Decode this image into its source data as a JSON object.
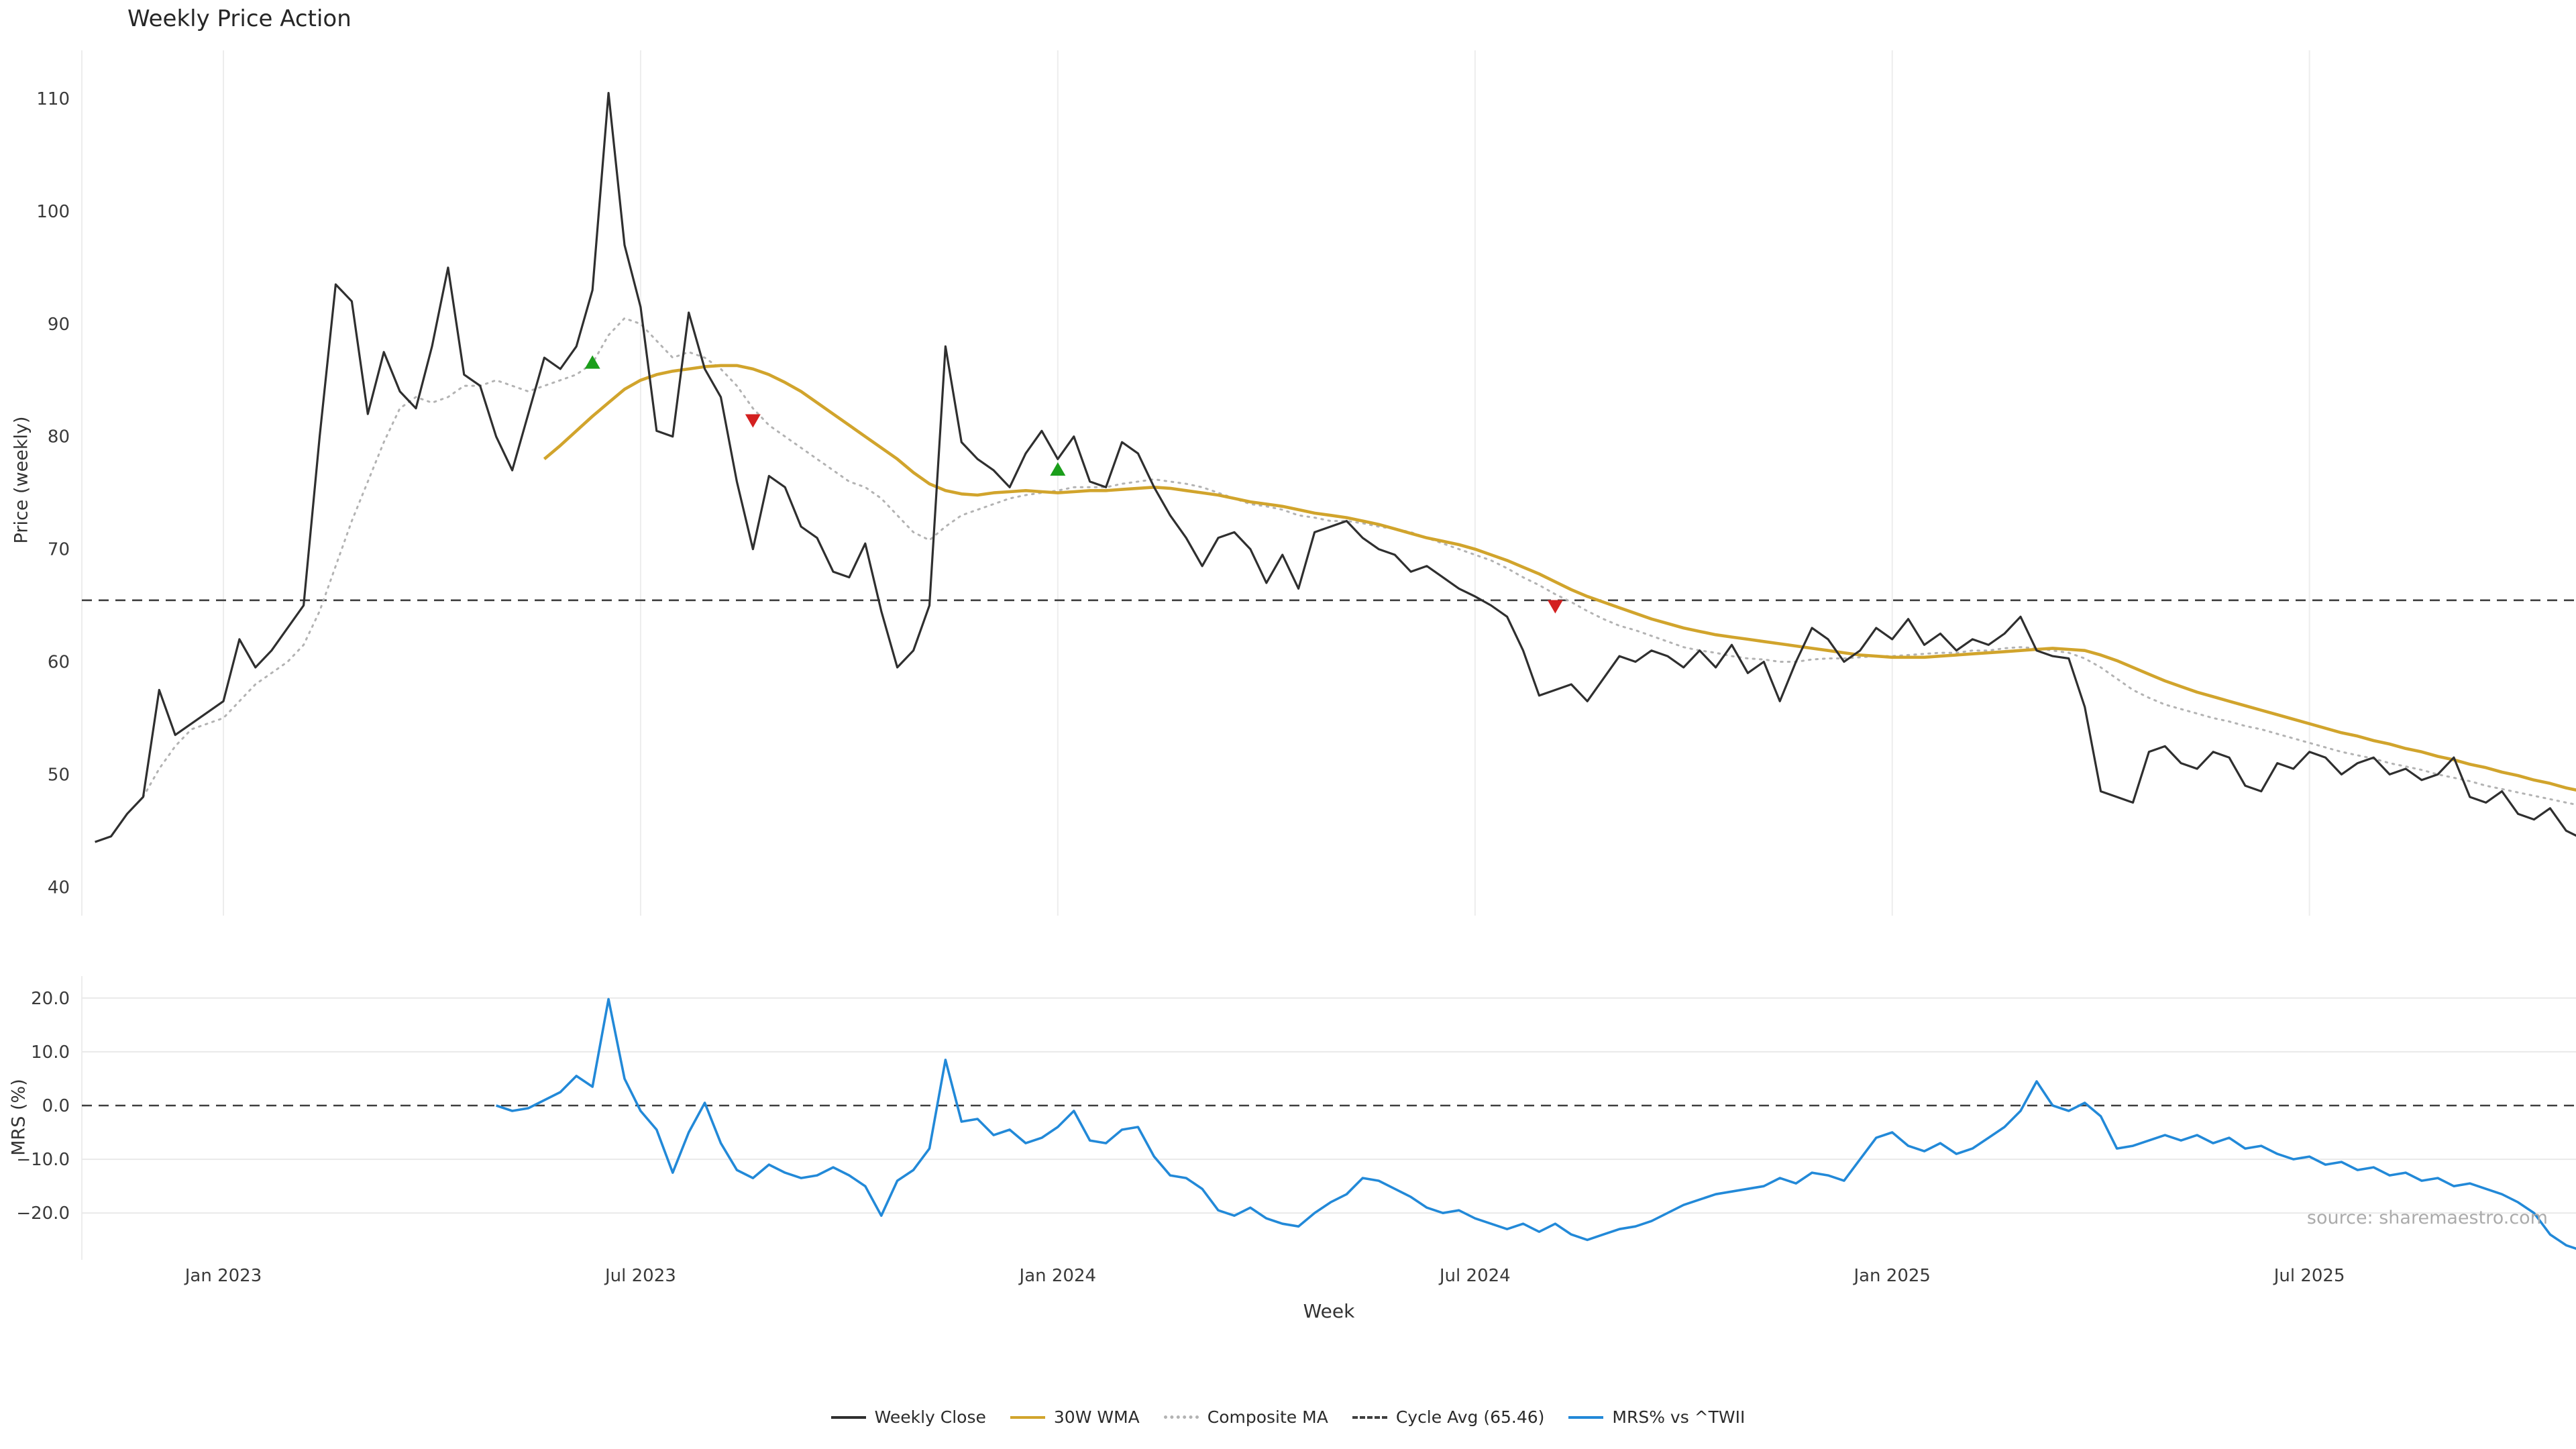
{
  "title": "Weekly Price Action",
  "source_watermark": "source: sharemaestro.com",
  "axes": {
    "xlabel": "Week",
    "price_ylabel": "Price (weekly)",
    "mrs_ylabel": "MRS (%)",
    "price_tick_labels": [
      "40",
      "50",
      "60",
      "70",
      "80",
      "90",
      "100",
      "110"
    ],
    "mrs_tick_labels": [
      "20.0",
      "10.0",
      "0.0",
      "−10.0",
      "−20.0"
    ],
    "x_tick_labels": [
      "Jan 2023",
      "Jul 2023",
      "Jan 2024",
      "Jul 2024",
      "Jan 2025",
      "Jul 2025"
    ]
  },
  "legend": [
    {
      "label": "Weekly Close",
      "color": "#2f2f2f",
      "style": "solid"
    },
    {
      "label": "30W WMA",
      "color": "#d1a42c",
      "style": "solid"
    },
    {
      "label": "Composite MA",
      "color": "#b3b3b3",
      "style": "dotted"
    },
    {
      "label": "Cycle Avg (65.46)",
      "color": "#3f3f3f",
      "style": "dashed"
    },
    {
      "label": "MRS% vs ^TWII",
      "color": "#2289d8",
      "style": "solid"
    }
  ],
  "chart_data": {
    "type": "line",
    "title": "Weekly Price Action",
    "x_axis": {
      "label": "Week",
      "unit": "week_index",
      "total_weeks": 156,
      "tick_weeks": [
        8,
        34,
        60,
        86,
        112,
        138
      ],
      "tick_labels": [
        "Jan 2023",
        "Jul 2023",
        "Jan 2024",
        "Jul 2024",
        "Jan 2025",
        "Jul 2025"
      ]
    },
    "panels": [
      {
        "name": "price",
        "ylabel": "Price (weekly)",
        "ylim": [
          37,
          114
        ],
        "yticks": [
          40,
          50,
          60,
          70,
          80,
          90,
          100,
          110
        ],
        "grid": "vertical-light",
        "reference_lines": [
          {
            "name": "Cycle Avg",
            "value": 65.46,
            "style": "dashed",
            "color": "#3f3f3f"
          }
        ],
        "series": [
          {
            "name": "Weekly Close",
            "color": "#2f2f2f",
            "style": "solid",
            "start_week": 0,
            "values": [
              44.0,
              44.5,
              46.5,
              48.0,
              57.5,
              53.5,
              54.5,
              55.5,
              56.5,
              62.0,
              59.5,
              61.0,
              63.0,
              65.0,
              80.0,
              93.5,
              92.0,
              82.0,
              87.5,
              84.0,
              82.5,
              88.0,
              95.0,
              85.5,
              84.5,
              80.0,
              77.0,
              82.0,
              87.0,
              86.0,
              88.0,
              93.0,
              110.5,
              97.0,
              91.5,
              80.5,
              80.0,
              91.0,
              86.0,
              83.5,
              76.0,
              70.0,
              76.5,
              75.5,
              72.0,
              71.0,
              68.0,
              67.5,
              70.5,
              64.5,
              59.5,
              61.0,
              65.0,
              88.0,
              79.5,
              78.0,
              77.0,
              75.5,
              78.5,
              80.5,
              78.0,
              80.0,
              76.0,
              75.5,
              79.5,
              78.5,
              75.5,
              73.0,
              71.0,
              68.5,
              71.0,
              71.5,
              70.0,
              67.0,
              69.5,
              66.5,
              71.5,
              72.0,
              72.5,
              71.0,
              70.0,
              69.5,
              68.0,
              68.5,
              67.5,
              66.5,
              65.8,
              65.0,
              64.0,
              61.0,
              57.0,
              57.5,
              58.0,
              56.5,
              58.5,
              60.5,
              60.0,
              61.0,
              60.5,
              59.5,
              61.0,
              59.5,
              61.5,
              59.0,
              60.0,
              56.5,
              60.0,
              63.0,
              62.0,
              60.0,
              61.0,
              63.0,
              62.0,
              63.8,
              61.5,
              62.5,
              61.0,
              62.0,
              61.5,
              62.5,
              64.0,
              61.0,
              60.5,
              60.3,
              56.0,
              48.5,
              48.0,
              47.5,
              52.0,
              52.5,
              51.0,
              50.5,
              52.0,
              51.5,
              49.0,
              48.5,
              51.0,
              50.5,
              52.0,
              51.5,
              50.0,
              51.0,
              51.5,
              50.0,
              50.5,
              49.5,
              50.0,
              51.5,
              48.0,
              47.5,
              48.5,
              46.5,
              46.0,
              47.0,
              45.0,
              44.3
            ]
          },
          {
            "name": "30W WMA",
            "color": "#d1a42c",
            "style": "solid",
            "start_week": 28,
            "values": [
              78.0,
              79.2,
              80.5,
              81.8,
              83.0,
              84.2,
              85.0,
              85.5,
              85.8,
              86.0,
              86.2,
              86.3,
              86.3,
              86.0,
              85.5,
              84.8,
              84.0,
              83.0,
              82.0,
              81.0,
              80.0,
              79.0,
              78.0,
              76.8,
              75.8,
              75.2,
              74.9,
              74.8,
              75.0,
              75.1,
              75.2,
              75.1,
              75.0,
              75.1,
              75.2,
              75.2,
              75.3,
              75.4,
              75.5,
              75.4,
              75.2,
              75.0,
              74.8,
              74.5,
              74.2,
              74.0,
              73.8,
              73.5,
              73.2,
              73.0,
              72.8,
              72.5,
              72.2,
              71.8,
              71.4,
              71.0,
              70.7,
              70.4,
              70.0,
              69.5,
              69.0,
              68.4,
              67.8,
              67.1,
              66.4,
              65.8,
              65.3,
              64.8,
              64.3,
              63.8,
              63.4,
              63.0,
              62.7,
              62.4,
              62.2,
              62.0,
              61.8,
              61.6,
              61.4,
              61.2,
              61.0,
              60.8,
              60.6,
              60.5,
              60.4,
              60.4,
              60.4,
              60.5,
              60.6,
              60.7,
              60.8,
              60.9,
              61.0,
              61.1,
              61.2,
              61.1,
              61.0,
              60.6,
              60.1,
              59.5,
              58.9,
              58.3,
              57.8,
              57.3,
              56.9,
              56.5,
              56.1,
              55.7,
              55.3,
              54.9,
              54.5,
              54.1,
              53.7,
              53.4,
              53.0,
              52.7,
              52.3,
              52.0,
              51.6,
              51.3,
              50.9,
              50.6,
              50.2,
              49.9,
              49.5,
              49.2,
              48.8,
              48.5
            ]
          },
          {
            "name": "Composite MA",
            "color": "#b3b3b3",
            "style": "dotted",
            "start_week": 3,
            "values": [
              48.0,
              50.5,
              52.5,
              54.0,
              54.5,
              55.0,
              56.5,
              58.0,
              59.0,
              60.0,
              61.5,
              64.5,
              68.5,
              72.5,
              76.0,
              79.5,
              82.5,
              83.5,
              83.0,
              83.5,
              84.5,
              84.5,
              85.0,
              84.5,
              84.0,
              84.5,
              85.0,
              85.5,
              86.5,
              89.0,
              90.5,
              90.0,
              88.5,
              87.0,
              87.5,
              87.0,
              86.0,
              84.5,
              82.5,
              81.0,
              80.0,
              79.0,
              78.0,
              77.0,
              76.0,
              75.5,
              74.5,
              73.0,
              71.5,
              70.8,
              72.0,
              73.0,
              73.5,
              74.0,
              74.5,
              74.8,
              75.0,
              75.2,
              75.5,
              75.5,
              75.5,
              75.8,
              76.0,
              76.2,
              76.0,
              75.8,
              75.5,
              75.0,
              74.5,
              74.0,
              73.8,
              73.5,
              73.0,
              72.8,
              72.5,
              72.5,
              72.3,
              72.0,
              71.8,
              71.5,
              71.0,
              70.5,
              70.0,
              69.5,
              69.0,
              68.3,
              67.5,
              66.8,
              66.0,
              65.3,
              64.5,
              63.8,
              63.2,
              62.8,
              62.3,
              61.8,
              61.3,
              61.0,
              60.8,
              60.5,
              60.3,
              60.2,
              60.0,
              60.0,
              60.2,
              60.3,
              60.3,
              60.4,
              60.5,
              60.5,
              60.6,
              60.7,
              60.8,
              60.8,
              61.0,
              61.0,
              61.2,
              61.3,
              61.2,
              61.0,
              60.8,
              60.3,
              59.5,
              58.5,
              57.5,
              56.8,
              56.2,
              55.8,
              55.4,
              55.0,
              54.7,
              54.3,
              54.0,
              53.6,
              53.2,
              52.8,
              52.4,
              52.0,
              51.7,
              51.4,
              51.0,
              50.7,
              50.4,
              50.0,
              49.7,
              49.4,
              49.0,
              48.7,
              48.4,
              48.1,
              47.8,
              47.5,
              47.2
            ]
          }
        ],
        "signals": {
          "buy_color": "#1b9e1b",
          "sell_color": "#d32020",
          "buy": [
            {
              "week": 31,
              "price": 86.5
            },
            {
              "week": 60,
              "price": 77.0
            }
          ],
          "sell": [
            {
              "week": 41,
              "price": 81.5
            },
            {
              "week": 91,
              "price": 65.0
            }
          ]
        }
      },
      {
        "name": "mrs",
        "ylabel": "MRS (%)",
        "ylim": [
          -28.5,
          24
        ],
        "yticks": [
          20,
          10,
          0,
          -10,
          -20
        ],
        "grid": "horizontal-light",
        "reference_lines": [
          {
            "name": "zero",
            "value": 0,
            "style": "dashed",
            "color": "#3f3f3f"
          }
        ],
        "series": [
          {
            "name": "MRS% vs ^TWII",
            "color": "#2289d8",
            "style": "solid",
            "start_week": 25,
            "values": [
              0.0,
              -1.0,
              -0.5,
              1.0,
              2.5,
              5.5,
              3.5,
              19.8,
              5.0,
              -1.0,
              -4.5,
              -12.5,
              -5.0,
              0.5,
              -7.0,
              -12.0,
              -13.5,
              -11.0,
              -12.5,
              -13.5,
              -13.0,
              -11.5,
              -13.0,
              -15.0,
              -20.5,
              -14.0,
              -12.0,
              -8.0,
              8.5,
              -3.0,
              -2.5,
              -5.5,
              -4.5,
              -7.0,
              -6.0,
              -4.0,
              -1.0,
              -6.5,
              -7.0,
              -4.5,
              -4.0,
              -9.5,
              -13.0,
              -13.5,
              -15.5,
              -19.5,
              -20.5,
              -19.0,
              -21.0,
              -22.0,
              -22.5,
              -20.0,
              -18.0,
              -16.5,
              -13.5,
              -14.0,
              -15.5,
              -17.0,
              -19.0,
              -20.0,
              -19.5,
              -21.0,
              -22.0,
              -23.0,
              -22.0,
              -23.5,
              -22.0,
              -24.0,
              -25.0,
              -24.0,
              -23.0,
              -22.5,
              -21.5,
              -20.0,
              -18.5,
              -17.5,
              -16.5,
              -16.0,
              -15.5,
              -15.0,
              -13.5,
              -14.5,
              -12.5,
              -13.0,
              -14.0,
              -10.0,
              -6.0,
              -5.0,
              -7.5,
              -8.5,
              -7.0,
              -9.0,
              -8.0,
              -6.0,
              -4.0,
              -1.0,
              4.5,
              0.0,
              -1.0,
              0.5,
              -2.0,
              -8.0,
              -7.5,
              -6.5,
              -5.5,
              -6.5,
              -5.5,
              -7.0,
              -6.0,
              -8.0,
              -7.5,
              -9.0,
              -10.0,
              -9.5,
              -11.0,
              -10.5,
              -12.0,
              -11.5,
              -13.0,
              -12.5,
              -14.0,
              -13.5,
              -15.0,
              -14.5,
              -15.5,
              -16.5,
              -18.0,
              -20.0,
              -24.0,
              -26.0,
              -27.0
            ]
          }
        ]
      }
    ]
  }
}
